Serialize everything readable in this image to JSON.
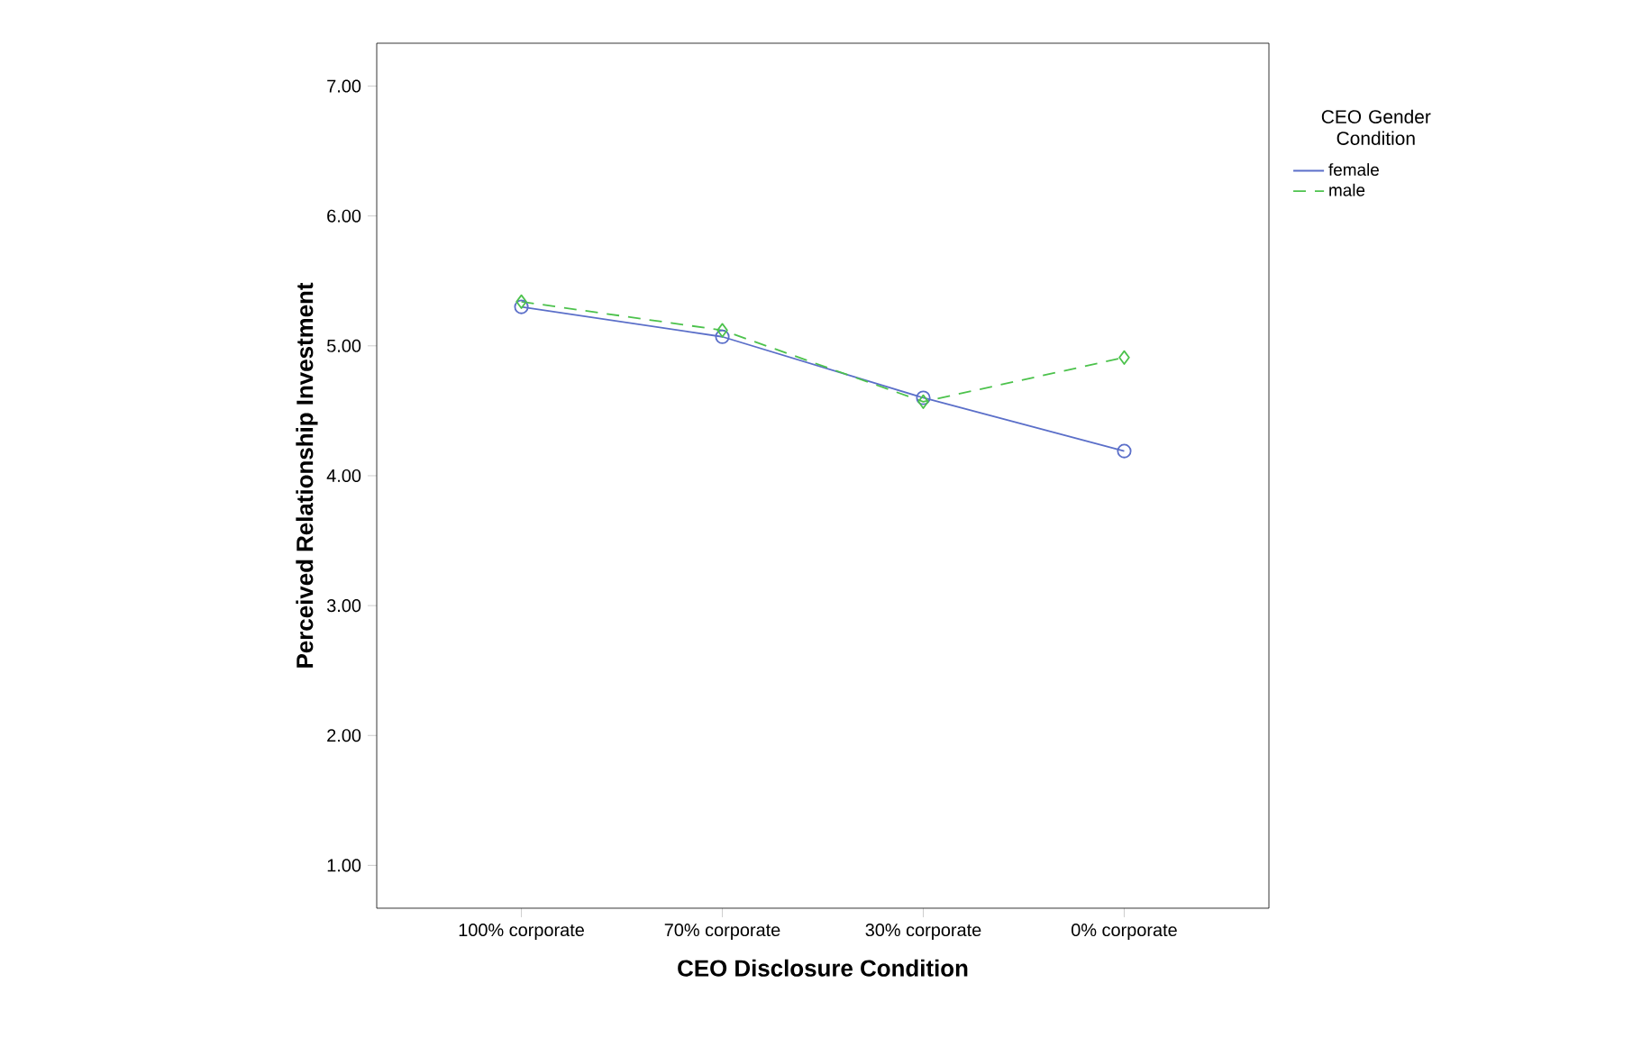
{
  "chart_data": {
    "type": "line",
    "xlabel": "CEO Disclosure Condition",
    "ylabel": "Perceived Relationship Investment",
    "legend_title": "CEO Gender Condition",
    "categories": [
      "100% corporate",
      "70% corporate",
      "30% corporate",
      "0% corporate"
    ],
    "series": [
      {
        "name": "female",
        "color": "#5b6fc9",
        "values": [
          5.3,
          5.07,
          4.6,
          4.19
        ],
        "marker": "circle",
        "line_style": "solid"
      },
      {
        "name": "male",
        "color": "#4cc24c",
        "values": [
          5.34,
          5.12,
          4.57,
          4.91
        ],
        "marker": "diamond",
        "line_style": "dashed"
      }
    ],
    "ylim": [
      0.67,
      7.33
    ],
    "yticks": [
      {
        "value": 1,
        "label": "1.00"
      },
      {
        "value": 2,
        "label": "2.00"
      },
      {
        "value": 3,
        "label": "3.00"
      },
      {
        "value": 4,
        "label": "4.00"
      },
      {
        "value": 5,
        "label": "5.00"
      },
      {
        "value": 6,
        "label": "6.00"
      },
      {
        "value": 7,
        "label": "7.00"
      }
    ],
    "grid": false,
    "legend": "right"
  }
}
